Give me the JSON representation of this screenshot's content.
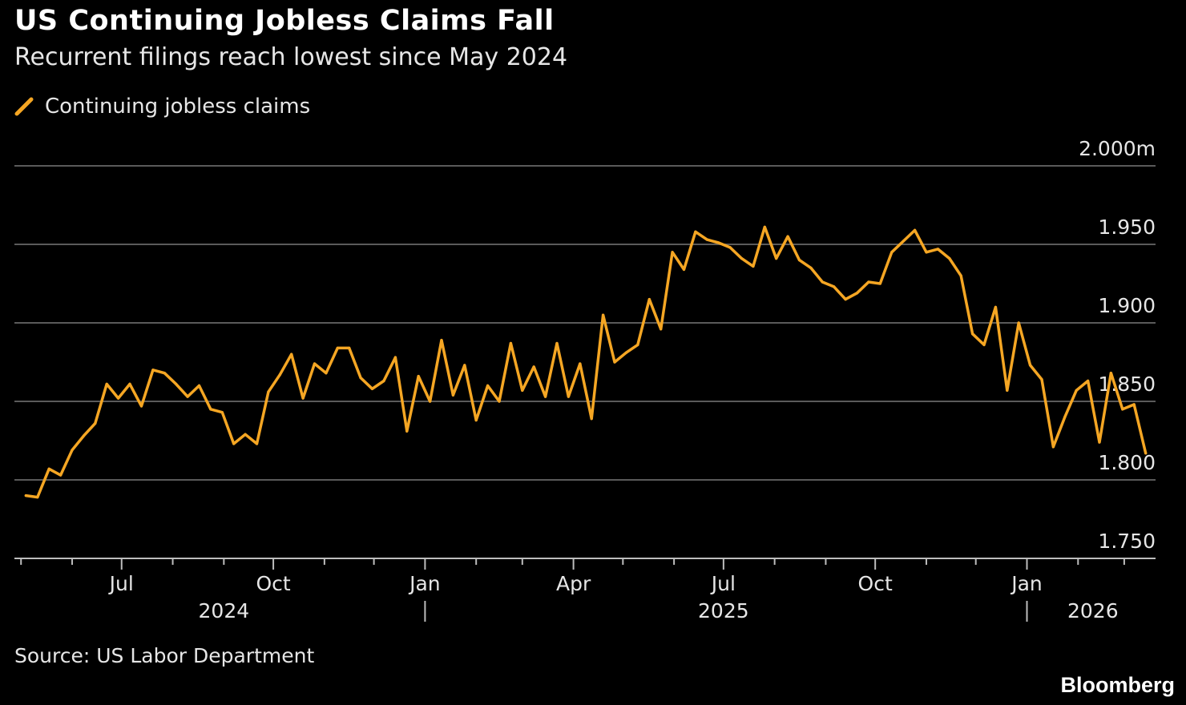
{
  "chart_data": {
    "type": "line",
    "title": "US Continuing Jobless Claims Fall",
    "subtitle": "Recurrent filings reach lowest since May 2024",
    "legend": "Continuing jobless claims",
    "source": "Source: US Labor Department",
    "brand": "Bloomberg",
    "ylabel_unit_suffix": "m",
    "ylim": [
      1.75,
      2.0
    ],
    "yticks": [
      1.75,
      1.8,
      1.85,
      1.9,
      1.95,
      2.0
    ],
    "ytick_labels": [
      "1.750",
      "1.800",
      "1.850",
      "1.900",
      "1.950",
      "2.000m"
    ],
    "x_start_date": "2024-04-27",
    "x_end_date": "2026-03-20",
    "x_month_labels": [
      {
        "date": "2024-07-01",
        "label": "Jul"
      },
      {
        "date": "2024-10-01",
        "label": "Oct"
      },
      {
        "date": "2025-01-01",
        "label": "Jan"
      },
      {
        "date": "2025-04-01",
        "label": "Apr"
      },
      {
        "date": "2025-07-01",
        "label": "Jul"
      },
      {
        "date": "2025-10-01",
        "label": "Oct"
      },
      {
        "date": "2026-01-01",
        "label": "Jan"
      }
    ],
    "x_minor_ticks": [
      "2024-05-01",
      "2024-06-01",
      "2024-08-01",
      "2024-09-01",
      "2024-11-01",
      "2024-12-01",
      "2025-02-01",
      "2025-03-01",
      "2025-05-01",
      "2025-06-01",
      "2025-08-01",
      "2025-09-01",
      "2025-11-01",
      "2025-12-01",
      "2026-02-01",
      "2026-03-01"
    ],
    "x_year_labels": [
      {
        "date": "2024-09-01",
        "label": "2024"
      },
      {
        "date": "2025-07-01",
        "label": "2025"
      },
      {
        "date": "2026-02-10",
        "label": "2026"
      }
    ],
    "x_year_separators": [
      "2025-01-01",
      "2026-01-01"
    ],
    "color": "#f5a623",
    "series": [
      {
        "name": "Continuing jobless claims",
        "start_date": "2024-05-04",
        "interval_days": 7,
        "values": [
          1.79,
          1.789,
          1.807,
          1.803,
          1.819,
          1.828,
          1.836,
          1.861,
          1.852,
          1.861,
          1.847,
          1.87,
          1.868,
          1.861,
          1.853,
          1.86,
          1.845,
          1.843,
          1.823,
          1.829,
          1.823,
          1.856,
          1.867,
          1.88,
          1.852,
          1.874,
          1.868,
          1.884,
          1.884,
          1.865,
          1.858,
          1.863,
          1.878,
          1.831,
          1.866,
          1.85,
          1.889,
          1.854,
          1.873,
          1.838,
          1.86,
          1.85,
          1.887,
          1.857,
          1.872,
          1.853,
          1.887,
          1.853,
          1.874,
          1.839,
          1.905,
          1.875,
          1.881,
          1.886,
          1.915,
          1.896,
          1.945,
          1.934,
          1.958,
          1.953,
          1.951,
          1.948,
          1.941,
          1.936,
          1.961,
          1.941,
          1.955,
          1.94,
          1.935,
          1.926,
          1.923,
          1.915,
          1.919,
          1.926,
          1.925,
          1.945,
          1.952,
          1.959,
          1.945,
          1.947,
          1.941,
          1.93,
          1.893,
          1.886,
          1.91,
          1.857,
          1.9,
          1.873,
          1.864,
          1.821,
          1.84,
          1.857,
          1.863,
          1.824,
          1.868,
          1.845,
          1.848,
          1.817
        ]
      }
    ]
  }
}
